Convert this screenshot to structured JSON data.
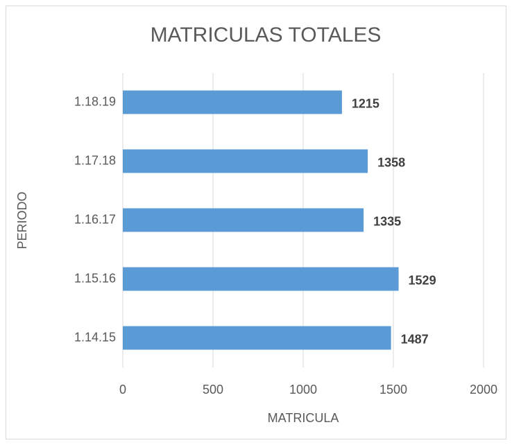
{
  "chart_data": {
    "type": "barh",
    "title": "MATRICULAS TOTALES",
    "x_label": "MATRICULA",
    "y_label": "PERIODO",
    "categories": [
      "1.14.15",
      "1.15.16",
      "1.16.17",
      "1.17.18",
      "1.18.19"
    ],
    "values": [
      1487,
      1529,
      1335,
      1358,
      1215
    ],
    "color": "#5b9bd5",
    "xlim": [
      0,
      2000
    ],
    "xticks": [
      0,
      500,
      1000,
      1500,
      2000
    ],
    "grid": true
  }
}
